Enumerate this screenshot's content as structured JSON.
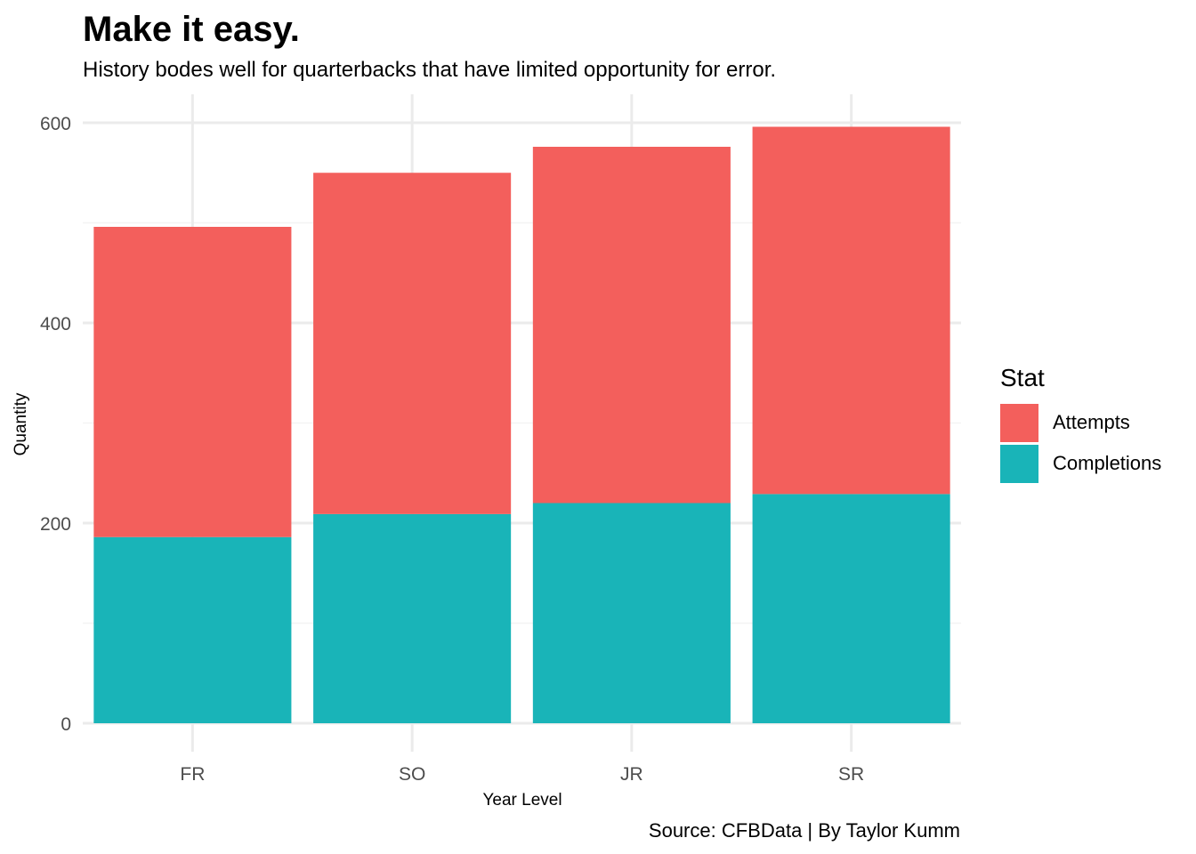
{
  "title": "Make it easy.",
  "subtitle": "History bodes well for quarterbacks that have limited opportunity for error.",
  "caption": "Source: CFBData | By Taylor Kumm",
  "chart_data": {
    "type": "bar",
    "stacked": true,
    "categories": [
      "FR",
      "SO",
      "JR",
      "SR"
    ],
    "series": [
      {
        "name": "Completions",
        "values": [
          186,
          209,
          220,
          229
        ],
        "color": "#19B4B8"
      },
      {
        "name": "Attempts",
        "values": [
          310,
          341,
          356,
          367
        ],
        "color": "#F35F5C"
      }
    ],
    "totals": [
      496,
      550,
      576,
      596
    ],
    "xlabel": "Year Level",
    "ylabel": "Quantity",
    "ylim": [
      0,
      600
    ],
    "yticks": [
      0,
      200,
      400,
      600
    ],
    "grid": true,
    "legend": {
      "title": "Stat",
      "position": "right",
      "items": [
        "Attempts",
        "Completions"
      ]
    }
  }
}
